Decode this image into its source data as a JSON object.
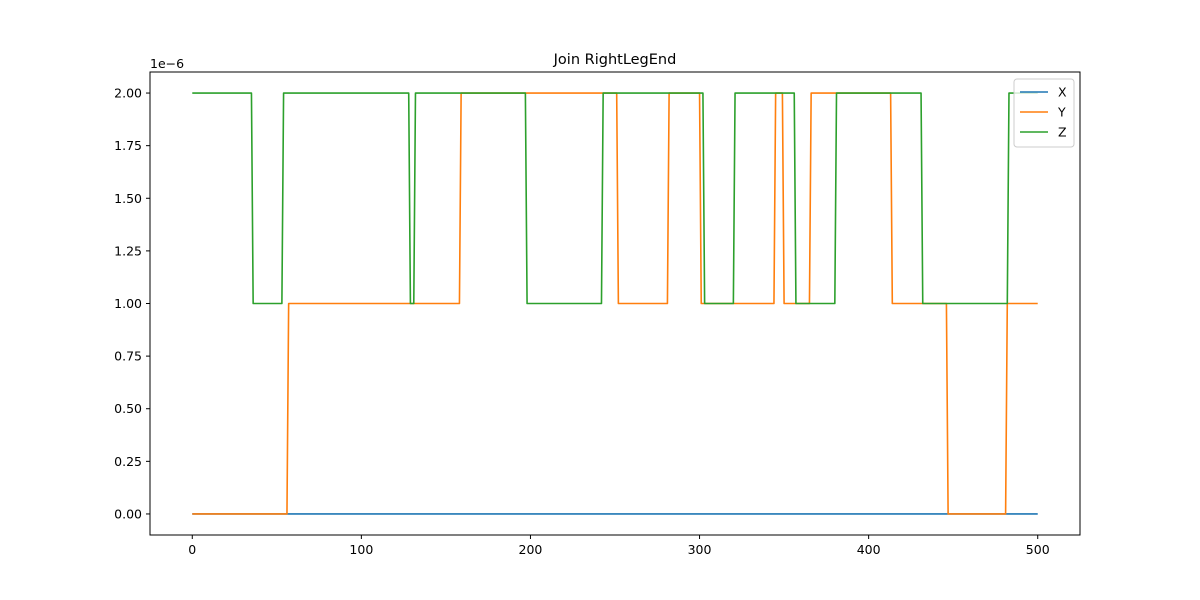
{
  "chart_data": {
    "type": "line",
    "title": "Join RightLegEnd",
    "xlabel": "",
    "ylabel": "",
    "y_offset_label": "1e−6",
    "xlim": [
      -25,
      525
    ],
    "ylim": [
      -0.1,
      2.1
    ],
    "x_ticks": [
      0,
      100,
      200,
      300,
      400,
      500
    ],
    "x_tick_labels": [
      "0",
      "100",
      "200",
      "300",
      "400",
      "500"
    ],
    "y_ticks": [
      0,
      0.25,
      0.5,
      0.75,
      1.0,
      1.25,
      1.5,
      1.75,
      2.0
    ],
    "y_tick_labels": [
      "0.00",
      "0.25",
      "0.50",
      "0.75",
      "1.00",
      "1.25",
      "1.50",
      "1.75",
      "2.00"
    ],
    "grid": false,
    "legend_position": "top-right",
    "series": [
      {
        "name": "X",
        "color": "#1f77b4",
        "points": [
          [
            0,
            0
          ],
          [
            500,
            0
          ]
        ]
      },
      {
        "name": "Y",
        "color": "#ff7f0e",
        "points": [
          [
            0,
            0
          ],
          [
            56,
            0
          ],
          [
            57,
            1
          ],
          [
            158,
            1
          ],
          [
            159,
            2
          ],
          [
            251,
            2
          ],
          [
            252,
            1
          ],
          [
            281,
            1
          ],
          [
            282,
            2
          ],
          [
            300,
            2
          ],
          [
            301,
            1
          ],
          [
            344,
            1
          ],
          [
            345,
            2
          ],
          [
            349,
            2
          ],
          [
            350,
            1
          ],
          [
            365,
            1
          ],
          [
            366,
            2
          ],
          [
            413,
            2
          ],
          [
            414,
            1
          ],
          [
            446,
            1
          ],
          [
            447,
            0
          ],
          [
            481,
            0
          ],
          [
            482,
            1
          ],
          [
            500,
            1
          ]
        ]
      },
      {
        "name": "Z",
        "color": "#2ca02c",
        "points": [
          [
            0,
            2
          ],
          [
            35,
            2
          ],
          [
            36,
            1
          ],
          [
            53,
            1
          ],
          [
            54,
            2
          ],
          [
            128,
            2
          ],
          [
            129,
            1
          ],
          [
            131,
            1
          ],
          [
            132,
            2
          ],
          [
            197,
            2
          ],
          [
            198,
            1
          ],
          [
            242,
            1
          ],
          [
            243,
            2
          ],
          [
            302,
            2
          ],
          [
            303,
            1
          ],
          [
            320,
            1
          ],
          [
            321,
            2
          ],
          [
            356,
            2
          ],
          [
            357,
            1
          ],
          [
            380,
            1
          ],
          [
            381,
            2
          ],
          [
            431,
            2
          ],
          [
            432,
            1
          ],
          [
            482,
            1
          ],
          [
            483,
            2
          ],
          [
            500,
            2
          ]
        ]
      }
    ]
  }
}
